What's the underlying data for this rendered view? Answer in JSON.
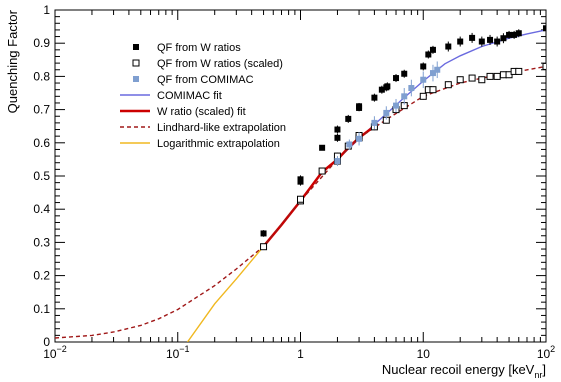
{
  "chart_data": {
    "type": "scatter",
    "xlabel": "Nuclear recoil energy [keV",
    "xlabel_sub": "nr",
    "xlabel_close": "]",
    "ylabel": "Quenching Factor",
    "x_scale": "log",
    "xlim": [
      0.01,
      100
    ],
    "ylim": [
      0,
      1
    ],
    "x_ticks": [
      {
        "value": 0.01,
        "base": "10",
        "exp": "−2"
      },
      {
        "value": 0.1,
        "base": "10",
        "exp": "−1"
      },
      {
        "value": 1,
        "base": "1",
        "exp": ""
      },
      {
        "value": 10,
        "base": "10",
        "exp": ""
      },
      {
        "value": 100,
        "base": "10",
        "exp": "2"
      }
    ],
    "y_ticks": [
      "0",
      "0.1",
      "0.2",
      "0.3",
      "0.4",
      "0.5",
      "0.6",
      "0.7",
      "0.8",
      "0.9",
      "1"
    ],
    "y_tick_values": [
      0,
      0.1,
      0.2,
      0.3,
      0.4,
      0.5,
      0.6,
      0.7,
      0.8,
      0.9,
      1.0
    ],
    "grid": false,
    "legend_position": "top-left",
    "series": [
      {
        "name": "QF from W ratios",
        "kind": "filled-square",
        "color": "#000000",
        "points": [
          {
            "x": 0.5,
            "y": 0.327,
            "err": 0.01
          },
          {
            "x": 1.0,
            "y": 0.483,
            "err": 0.012
          },
          {
            "x": 1.0,
            "y": 0.49,
            "err": 0.012
          },
          {
            "x": 1.5,
            "y": 0.585,
            "err": 0.008
          },
          {
            "x": 2.0,
            "y": 0.615,
            "err": 0.012
          },
          {
            "x": 2.0,
            "y": 0.64,
            "err": 0.012
          },
          {
            "x": 2.45,
            "y": 0.672,
            "err": 0.012
          },
          {
            "x": 3.0,
            "y": 0.705,
            "err": 0.01
          },
          {
            "x": 3.0,
            "y": 0.71,
            "err": 0.01
          },
          {
            "x": 4.0,
            "y": 0.736,
            "err": 0.012
          },
          {
            "x": 4.6,
            "y": 0.76,
            "err": 0.012
          },
          {
            "x": 5.0,
            "y": 0.767,
            "err": 0.012
          },
          {
            "x": 5.1,
            "y": 0.77,
            "err": 0.012
          },
          {
            "x": 6.0,
            "y": 0.795,
            "err": 0.012
          },
          {
            "x": 7.0,
            "y": 0.808,
            "err": 0.012
          },
          {
            "x": 10.0,
            "y": 0.83,
            "err": 0.012
          },
          {
            "x": 11.0,
            "y": 0.866,
            "err": 0.012
          },
          {
            "x": 12.0,
            "y": 0.88,
            "err": 0.012
          },
          {
            "x": 16.0,
            "y": 0.89,
            "err": 0.015
          },
          {
            "x": 20.0,
            "y": 0.905,
            "err": 0.015
          },
          {
            "x": 25.0,
            "y": 0.916,
            "err": 0.015
          },
          {
            "x": 30.0,
            "y": 0.905,
            "err": 0.015
          },
          {
            "x": 35.0,
            "y": 0.91,
            "err": 0.015
          },
          {
            "x": 40.0,
            "y": 0.905,
            "err": 0.015
          },
          {
            "x": 45.0,
            "y": 0.915,
            "err": 0.015
          },
          {
            "x": 50.0,
            "y": 0.925,
            "err": 0.012
          },
          {
            "x": 55.0,
            "y": 0.925,
            "err": 0.012
          },
          {
            "x": 60.0,
            "y": 0.93,
            "err": 0.012
          },
          {
            "x": 100.0,
            "y": 0.945,
            "err": 0.01
          }
        ]
      },
      {
        "name": "QF from W ratios (scaled)",
        "kind": "open-square",
        "color": "#000000",
        "points": [
          {
            "x": 0.5,
            "y": 0.287,
            "err": 0.008
          },
          {
            "x": 1.0,
            "y": 0.425,
            "err": 0.01
          },
          {
            "x": 1.0,
            "y": 0.43,
            "err": 0.01
          },
          {
            "x": 1.5,
            "y": 0.515,
            "err": 0.008
          },
          {
            "x": 2.0,
            "y": 0.545,
            "err": 0.01
          },
          {
            "x": 2.0,
            "y": 0.56,
            "err": 0.01
          },
          {
            "x": 2.45,
            "y": 0.59,
            "err": 0.01
          },
          {
            "x": 3.0,
            "y": 0.615,
            "err": 0.01
          },
          {
            "x": 3.0,
            "y": 0.622,
            "err": 0.01
          },
          {
            "x": 4.0,
            "y": 0.648,
            "err": 0.01
          },
          {
            "x": 5.0,
            "y": 0.668,
            "err": 0.01
          },
          {
            "x": 6.0,
            "y": 0.7,
            "err": 0.01
          },
          {
            "x": 7.0,
            "y": 0.712,
            "err": 0.01
          },
          {
            "x": 10.0,
            "y": 0.74,
            "err": 0.01
          },
          {
            "x": 11.0,
            "y": 0.76,
            "err": 0.01
          },
          {
            "x": 12.0,
            "y": 0.76,
            "err": 0.01
          },
          {
            "x": 16.0,
            "y": 0.775,
            "err": 0.01
          },
          {
            "x": 20.0,
            "y": 0.79,
            "err": 0.01
          },
          {
            "x": 25.0,
            "y": 0.795,
            "err": 0.01
          },
          {
            "x": 30.0,
            "y": 0.79,
            "err": 0.01
          },
          {
            "x": 35.0,
            "y": 0.8,
            "err": 0.01
          },
          {
            "x": 40.0,
            "y": 0.8,
            "err": 0.01
          },
          {
            "x": 45.0,
            "y": 0.805,
            "err": 0.01
          },
          {
            "x": 50.0,
            "y": 0.805,
            "err": 0.01
          },
          {
            "x": 55.0,
            "y": 0.815,
            "err": 0.01
          },
          {
            "x": 60.0,
            "y": 0.815,
            "err": 0.01
          },
          {
            "x": 100.0,
            "y": 0.83,
            "err": 0.01
          }
        ]
      },
      {
        "name": "QF from COMIMAC",
        "kind": "filled-square",
        "color": "#7f9fd0",
        "points": [
          {
            "x": 2.0,
            "y": 0.545,
            "err": 0.015
          },
          {
            "x": 2.5,
            "y": 0.595,
            "err": 0.015
          },
          {
            "x": 3.0,
            "y": 0.612,
            "err": 0.02
          },
          {
            "x": 4.0,
            "y": 0.66,
            "err": 0.02
          },
          {
            "x": 5.0,
            "y": 0.69,
            "err": 0.02
          },
          {
            "x": 6.0,
            "y": 0.712,
            "err": 0.02
          },
          {
            "x": 7.0,
            "y": 0.74,
            "err": 0.025
          },
          {
            "x": 8.0,
            "y": 0.765,
            "err": 0.025
          },
          {
            "x": 10.0,
            "y": 0.79,
            "err": 0.025
          },
          {
            "x": 12.0,
            "y": 0.81,
            "err": 0.025
          },
          {
            "x": 13.0,
            "y": 0.82,
            "err": 0.025
          }
        ]
      }
    ],
    "curves": [
      {
        "name": "COMIMAC fit",
        "color": "#6a6adf",
        "style": "solid",
        "x": [
          2.0,
          3.0,
          4.0,
          5.0,
          7.0,
          10.0,
          15.0,
          20.0,
          30.0,
          50.0,
          70.0,
          100.0
        ],
        "y": [
          0.55,
          0.612,
          0.655,
          0.687,
          0.736,
          0.786,
          0.838,
          0.862,
          0.89,
          0.915,
          0.928,
          0.94
        ]
      },
      {
        "name": "W ratio (scaled) fit",
        "color": "#cc0000",
        "style": "solid",
        "x": [
          0.5,
          0.7,
          1.0,
          1.5,
          2.0,
          2.5,
          3.0,
          4.0
        ],
        "y": [
          0.288,
          0.353,
          0.425,
          0.512,
          0.55,
          0.588,
          0.615,
          0.65
        ]
      },
      {
        "name": "Lindhard-like extrapolation",
        "color": "#a01818",
        "style": "dashed",
        "x": [
          0.01,
          0.02,
          0.03,
          0.05,
          0.07,
          0.1,
          0.15,
          0.2,
          0.3,
          0.5,
          1.0,
          2.0,
          3.0,
          5.0,
          10.0,
          20.0,
          30.0,
          50.0,
          100.0
        ],
        "y": [
          0.012,
          0.02,
          0.03,
          0.05,
          0.07,
          0.098,
          0.14,
          0.17,
          0.22,
          0.288,
          0.425,
          0.55,
          0.615,
          0.67,
          0.74,
          0.78,
          0.795,
          0.81,
          0.83
        ]
      },
      {
        "name": "Logarithmic extrapolation",
        "color": "#f0b820",
        "style": "solid",
        "x": [
          0.12,
          0.2,
          0.3,
          0.5
        ],
        "y": [
          0.0,
          0.115,
          0.19,
          0.288
        ]
      }
    ],
    "legend": [
      {
        "label": "QF from W ratios",
        "kind": "filled-square",
        "color": "#000000"
      },
      {
        "label": "QF from W ratios (scaled)",
        "kind": "open-square",
        "color": "#000000"
      },
      {
        "label": "QF from COMIMAC",
        "kind": "filled-square",
        "color": "#7f9fd0"
      },
      {
        "label": "COMIMAC fit",
        "kind": "line",
        "color": "#6a6adf"
      },
      {
        "label": "W ratio (scaled) fit",
        "kind": "line",
        "color": "#cc0000"
      },
      {
        "label": "Lindhard-like extrapolation",
        "kind": "dashed",
        "color": "#a01818"
      },
      {
        "label": "Logarithmic extrapolation",
        "kind": "line",
        "color": "#f0b820"
      }
    ]
  }
}
